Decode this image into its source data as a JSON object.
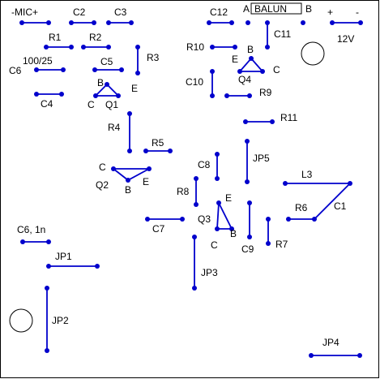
{
  "colors": {
    "pad": "#0000cc",
    "track": "#0000cc",
    "text": "#000000",
    "background": "#ffffff"
  },
  "labels": {
    "mic": "-MIC+",
    "c2": "C2",
    "c3": "C3",
    "c12": "C12",
    "balun_a": "A",
    "balun": "BALUN",
    "balun_b": "B",
    "plus": "+",
    "minus": "-",
    "r1": "R1",
    "r2": "R2",
    "c11": "C11",
    "v12": "12V",
    "r10": "R10",
    "r3": "R3",
    "c6_value": "100/25",
    "c6": "C6",
    "c5": "C5",
    "q4_b": "B",
    "q4_e": "E",
    "q4_c": "C",
    "q4": "Q4",
    "c10": "C10",
    "q1_b": "B",
    "q1_e": "E",
    "q1_c": "C",
    "q1": "Q1",
    "c4": "C4",
    "r9": "R9",
    "r11": "R11",
    "r4": "R4",
    "r5": "R5",
    "jp5": "JP5",
    "c8": "C8",
    "q2_c": "C",
    "q2_e": "E",
    "q2_b": "B",
    "q2": "Q2",
    "l3": "L3",
    "r8": "R8",
    "q3_e": "E",
    "q3": "Q3",
    "q3_c": "C",
    "q3_b": "B",
    "r6": "R6",
    "c1": "C1",
    "c7": "C7",
    "c9": "C9",
    "r7": "R7",
    "c6_1n": "C6, 1n",
    "jp1": "JP1",
    "jp3": "JP3",
    "jp2": "JP2",
    "jp4": "JP4"
  }
}
